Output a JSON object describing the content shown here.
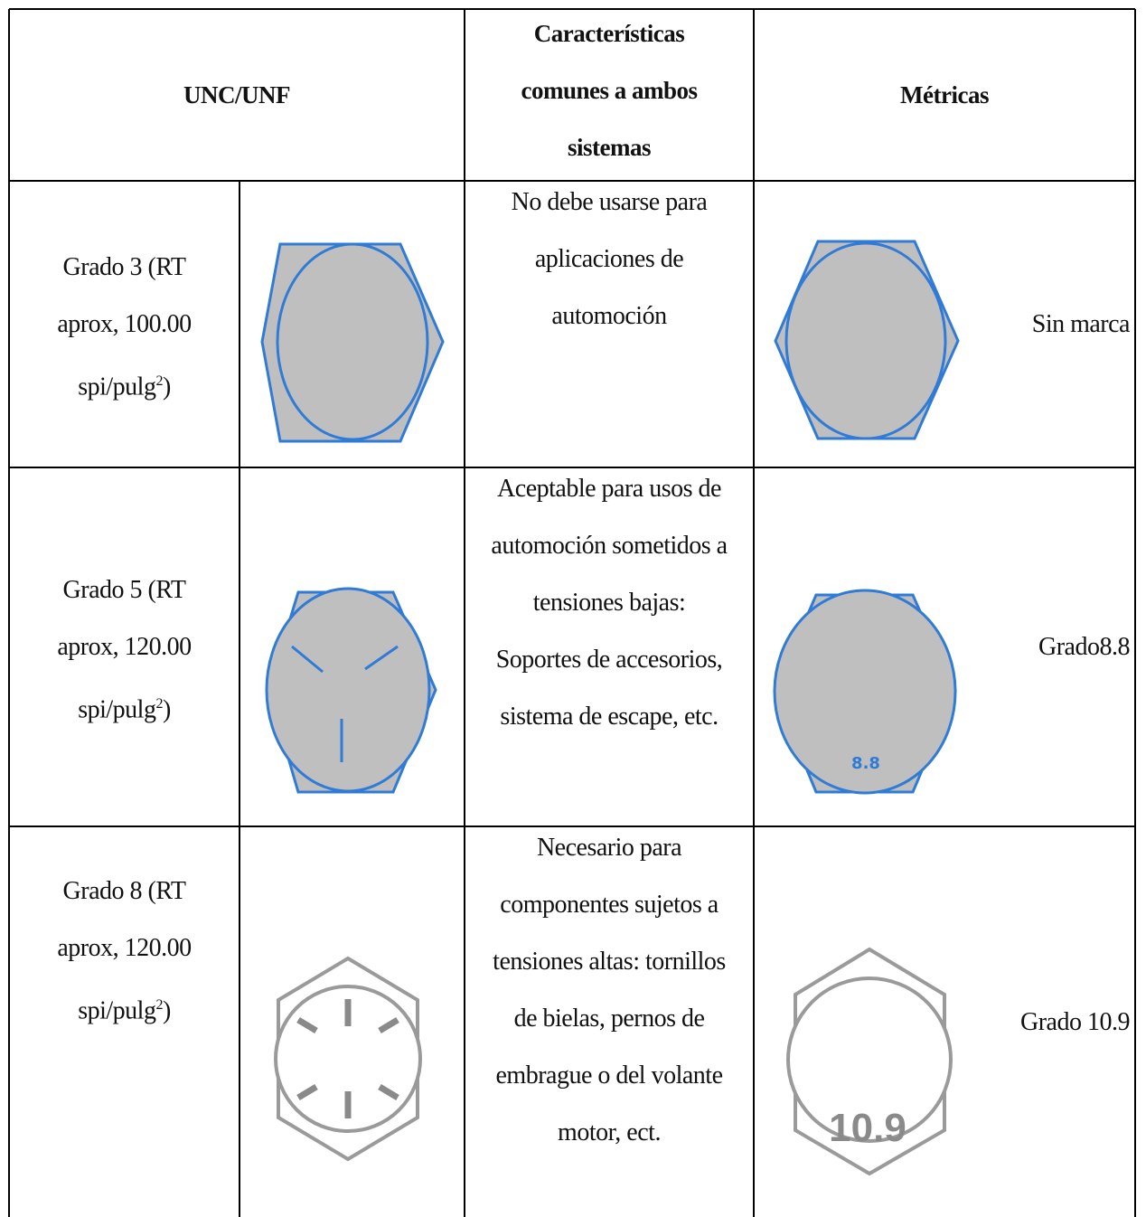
{
  "header": [
    "UNC/UNF",
    [
      "Características",
      "comunes a ambos",
      "sistemas"
    ],
    "Métricas"
  ],
  "rows": [
    {
      "unc": {
        "lines": [
          "Grado 3 (RT",
          "aprox, 100.00",
          "spi/pulg"
        ],
        "sup": "2",
        "close": ")"
      },
      "common": [
        "No debe usarse para",
        "aplicaciones de",
        "automoción"
      ],
      "metric": "Sin marca"
    },
    {
      "unc": {
        "lines": [
          "Grado 5 (RT",
          "aprox, 120.00",
          "spi/pulg"
        ],
        "sup": "2",
        "close": ")"
      },
      "common": [
        "Aceptable para usos de",
        "automoción sometidos a",
        "tensiones bajas:",
        "Soportes de accesorios,",
        "sistema de escape, etc."
      ],
      "metric": "Grado8.8",
      "head_mark": "8.8"
    },
    {
      "unc": {
        "lines": [
          "Grado 8 (RT",
          "aprox, 120.00",
          "spi/pulg"
        ],
        "sup": "2",
        "close": ")"
      },
      "common": [
        "Necesario para",
        "componentes sujetos a",
        "tensiones altas: tornillos",
        "de bielas, pernos de",
        "embrague o del volante",
        "motor, ect."
      ],
      "metric": "Grado 10.9",
      "head_mark": "10.9"
    }
  ]
}
